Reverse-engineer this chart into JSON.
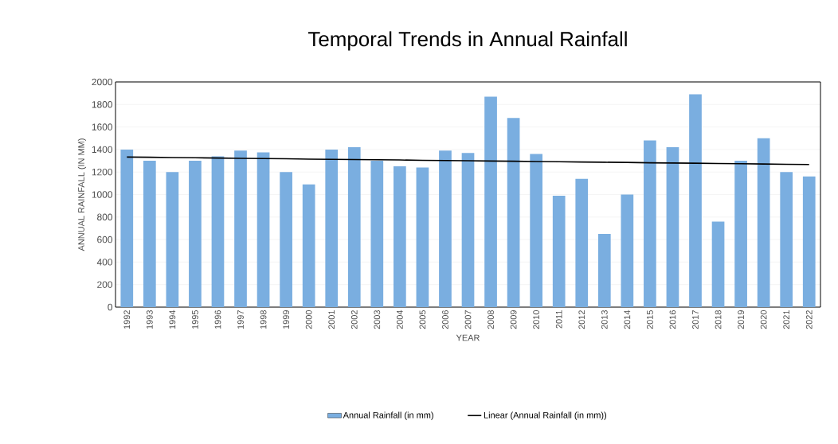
{
  "chart_data": {
    "type": "bar",
    "title": "Temporal Trends in Annual Rainfall",
    "xlabel": "YEAR",
    "ylabel": "ANNUAL RAINFALL (IN MM)",
    "categories": [
      "1992",
      "1993",
      "1994",
      "1995",
      "1996",
      "1997",
      "1998",
      "1999",
      "2000",
      "2001",
      "2002",
      "2003",
      "2004",
      "2005",
      "2006",
      "2007",
      "2008",
      "2009",
      "2010",
      "2011",
      "2012",
      "2013",
      "2014",
      "2015",
      "2016",
      "2017",
      "2018",
      "2019",
      "2020",
      "2021",
      "2022"
    ],
    "series": [
      {
        "name": "Annual Rainfall (in mm)",
        "color": "#7aaee0",
        "values": [
          1400,
          1300,
          1200,
          1300,
          1340,
          1390,
          1375,
          1200,
          1090,
          1400,
          1420,
          1300,
          1250,
          1240,
          1390,
          1370,
          1870,
          1680,
          1360,
          990,
          1140,
          650,
          1000,
          1480,
          1420,
          1890,
          760,
          1300,
          1500,
          1200,
          1160
        ]
      },
      {
        "name": "Linear (Annual Rainfall (in mm))",
        "type": "line",
        "color": "#000000",
        "values": [
          1333,
          1331,
          1329,
          1327,
          1324,
          1322,
          1320,
          1318,
          1315,
          1313,
          1311,
          1309,
          1307,
          1304,
          1302,
          1300,
          1298,
          1296,
          1293,
          1291,
          1289,
          1287,
          1285,
          1282,
          1280,
          1278,
          1276,
          1274,
          1271,
          1269,
          1267
        ]
      }
    ],
    "ylim": [
      0,
      2000
    ],
    "yticks": [
      0,
      200,
      400,
      600,
      800,
      1000,
      1200,
      1400,
      1600,
      1800,
      2000
    ],
    "grid": "y",
    "legend": "bottom"
  }
}
